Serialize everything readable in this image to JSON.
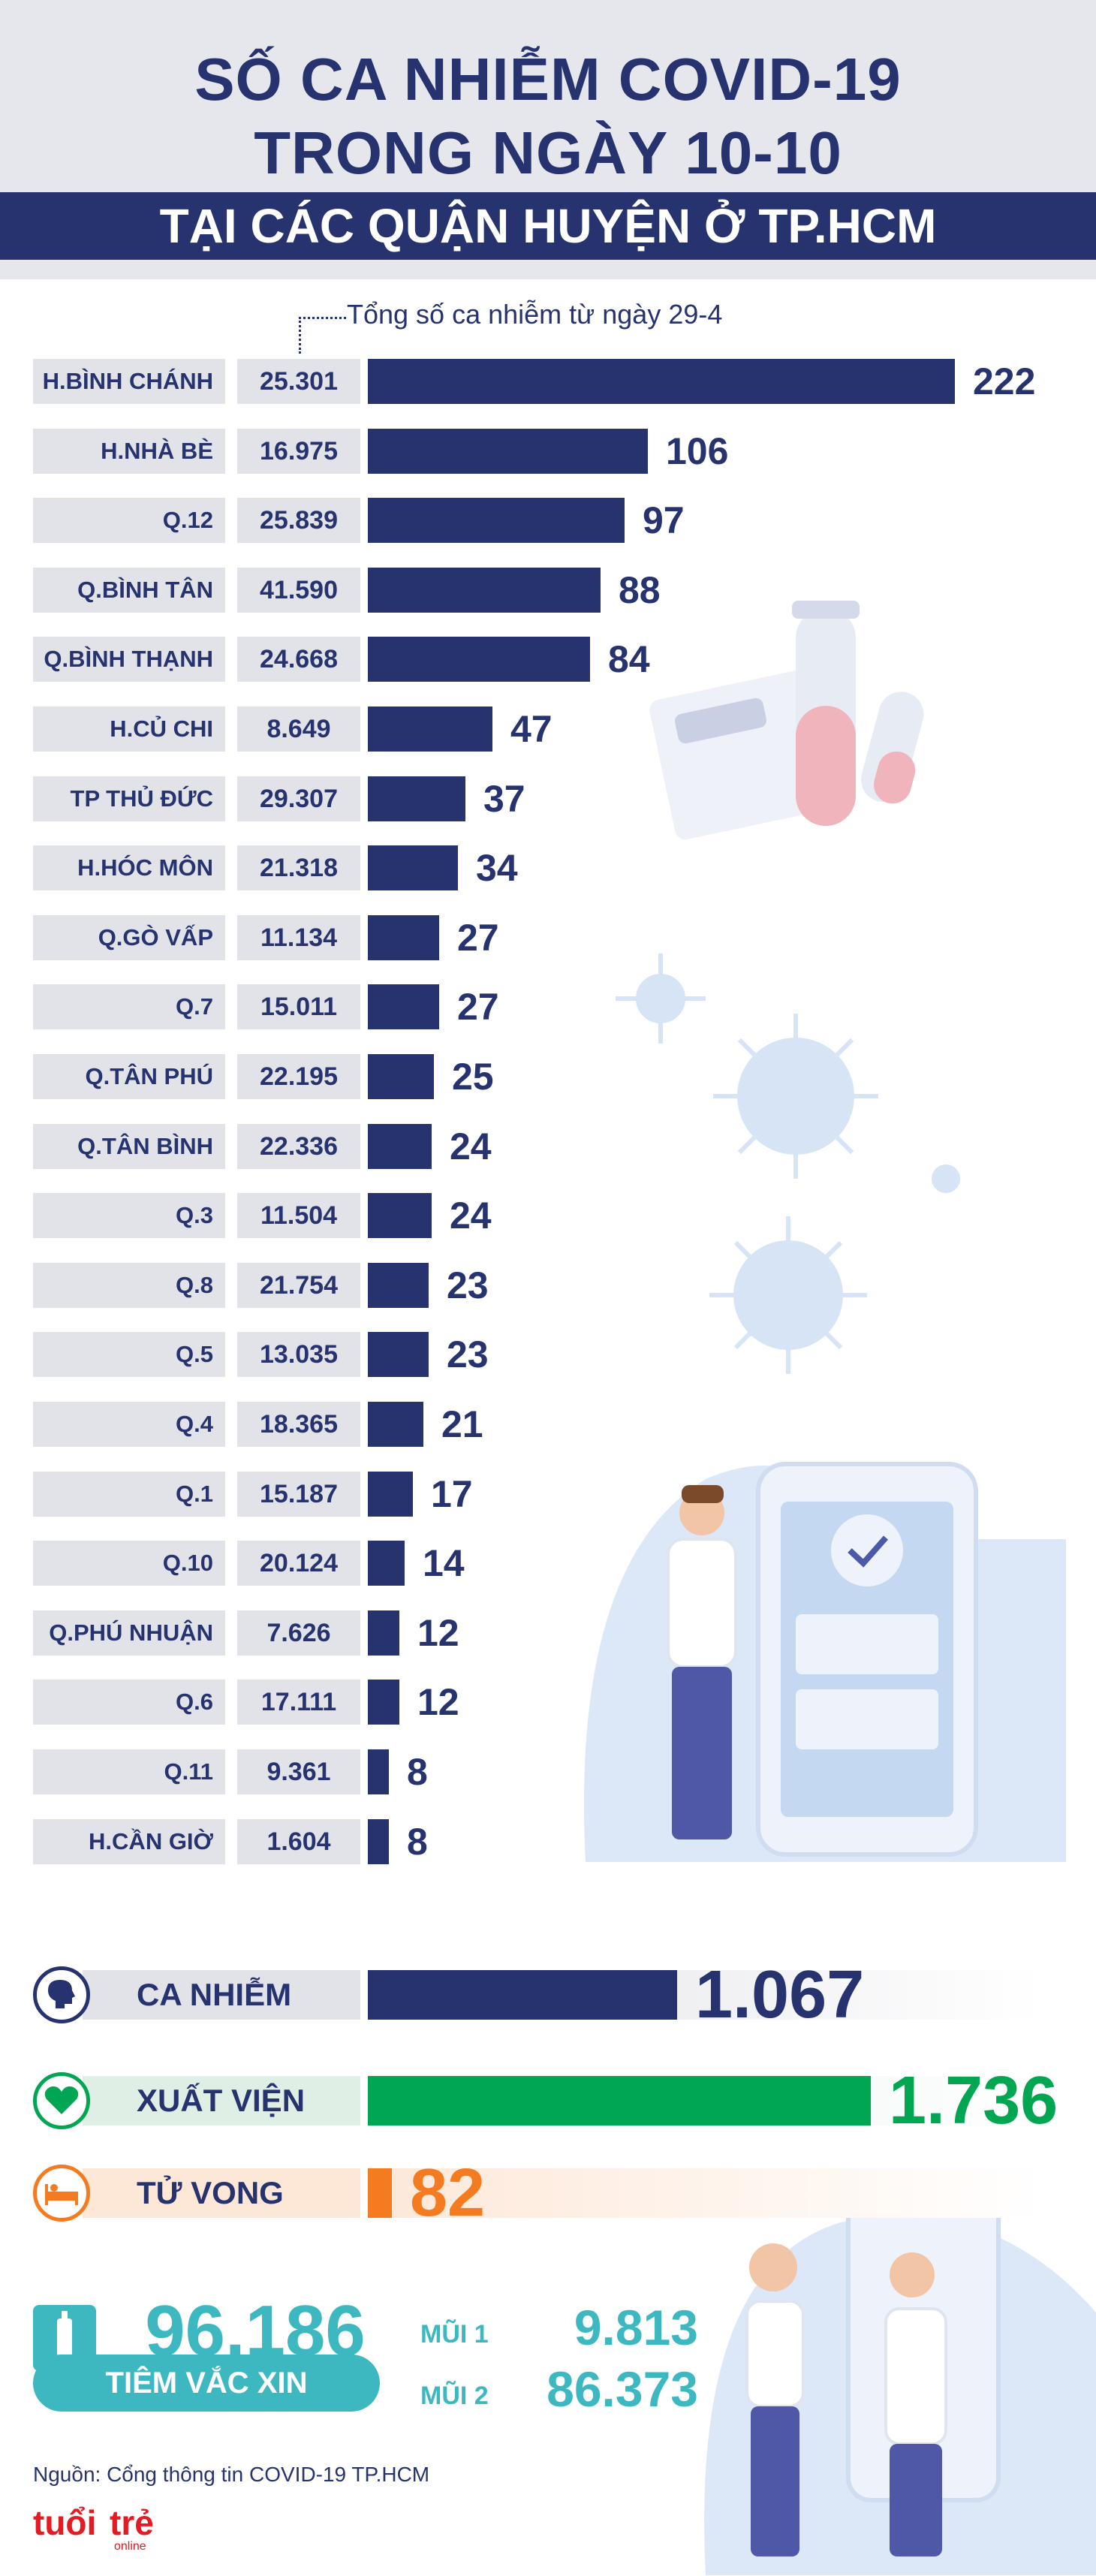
{
  "header": {
    "title_line1": "SỐ CA NHIỄM COVID-19",
    "title_line2": "TRONG NGÀY 10-10",
    "subtitle": "TẠI CÁC QUẬN HUYỆN Ở TP.HCM"
  },
  "legend_note": "Tổng số ca nhiễm từ ngày 29-4",
  "chart_data": {
    "type": "bar",
    "orientation": "horizontal",
    "title": "SỐ CA NHIỄM COVID-19 TRONG NGÀY 10-10 TẠI CÁC QUẬN HUYỆN Ở TP.HCM",
    "series_note": "Tổng số ca nhiễm từ ngày 29-4",
    "xlim": [
      0,
      222
    ],
    "bar_color": "#27336e",
    "rows": [
      {
        "name": "H.BÌNH CHÁNH",
        "total": "25.301",
        "value": 222
      },
      {
        "name": "H.NHÀ BÈ",
        "total": "16.975",
        "value": 106
      },
      {
        "name": "Q.12",
        "total": "25.839",
        "value": 97
      },
      {
        "name": "Q.BÌNH TÂN",
        "total": "41.590",
        "value": 88
      },
      {
        "name": "Q.BÌNH THẠNH",
        "total": "24.668",
        "value": 84
      },
      {
        "name": "H.CỦ CHI",
        "total": "8.649",
        "value": 47
      },
      {
        "name": "TP THỦ ĐỨC",
        "total": "29.307",
        "value": 37
      },
      {
        "name": "H.HÓC MÔN",
        "total": "21.318",
        "value": 34
      },
      {
        "name": "Q.GÒ VẤP",
        "total": "11.134",
        "value": 27
      },
      {
        "name": "Q.7",
        "total": "15.011",
        "value": 27
      },
      {
        "name": "Q.TÂN PHÚ",
        "total": "22.195",
        "value": 25
      },
      {
        "name": "Q.TÂN BÌNH",
        "total": "22.336",
        "value": 24
      },
      {
        "name": "Q.3",
        "total": "11.504",
        "value": 24
      },
      {
        "name": "Q.8",
        "total": "21.754",
        "value": 23
      },
      {
        "name": "Q.5",
        "total": "13.035",
        "value": 23
      },
      {
        "name": "Q.4",
        "total": "18.365",
        "value": 21
      },
      {
        "name": "Q.1",
        "total": "15.187",
        "value": 17
      },
      {
        "name": "Q.10",
        "total": "20.124",
        "value": 14
      },
      {
        "name": "Q.PHÚ NHUẬN",
        "total": "7.626",
        "value": 12
      },
      {
        "name": "Q.6",
        "total": "17.111",
        "value": 12
      },
      {
        "name": "Q.11",
        "total": "9.361",
        "value": 8
      },
      {
        "name": "H.CẦN GIỜ",
        "total": "1.604",
        "value": 8
      }
    ]
  },
  "summary": [
    {
      "label": "CA NHIỄM",
      "value": "1.067",
      "amount": 1067,
      "color": "#27336e",
      "label_bg": "#e2e3e8",
      "icon": "head-icon"
    },
    {
      "label": "XUẤT VIỆN",
      "value": "1.736",
      "amount": 1736,
      "color": "#00a651",
      "label_bg": "#e0efe6",
      "icon": "heart-icon"
    },
    {
      "label": "TỬ VONG",
      "value": "82",
      "amount": 82,
      "color": "#f47b20",
      "label_bg": "#fde8d8",
      "icon": "bed-icon"
    }
  ],
  "vaccine": {
    "total": "96.186",
    "label": "TIÊM VẮC XIN",
    "dose1_label": "MŨI 1",
    "dose1_value": "9.813",
    "dose2_label": "MŨI 2",
    "dose2_value": "86.373"
  },
  "source": "Nguồn: Cổng thông tin COVID-19 TP.HCM",
  "logo": {
    "word1": "tuổi",
    "word2": "trẻ",
    "word3": "online"
  },
  "colors": {
    "navy": "#27336e",
    "green": "#00a651",
    "orange": "#f47b20",
    "teal": "#3eb8c0"
  }
}
